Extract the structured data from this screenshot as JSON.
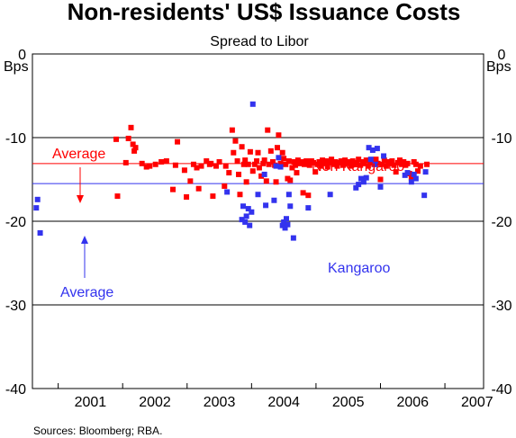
{
  "chart_data": {
    "type": "scatter",
    "title": "Non-residents' US$ Issuance Costs",
    "subtitle": "Spread to Libor",
    "ylabel_left": "Bps",
    "ylabel_right": "Bps",
    "ylim": [
      -40,
      0
    ],
    "yticks": [
      0,
      -10,
      -20,
      -30,
      -40
    ],
    "xlim": [
      2000.6,
      2007.6
    ],
    "xticks": [
      "2001",
      "2002",
      "2003",
      "2004",
      "2005",
      "2006",
      "2007"
    ],
    "grid": true,
    "source": "Sources: Bloomberg; RBA.",
    "series": [
      {
        "name": "Non Kangaroo",
        "color": "#ff0000",
        "average": -13.1,
        "points": [
          [
            2001.9,
            -10.2
          ],
          [
            2001.92,
            -17.0
          ],
          [
            2002.05,
            -13.0
          ],
          [
            2002.09,
            -10.1
          ],
          [
            2002.13,
            -8.8
          ],
          [
            2002.16,
            -10.8
          ],
          [
            2002.18,
            -11.6
          ],
          [
            2002.2,
            -11.2
          ],
          [
            2002.3,
            -13.1
          ],
          [
            2002.37,
            -13.5
          ],
          [
            2002.42,
            -13.4
          ],
          [
            2002.51,
            -13.2
          ],
          [
            2002.6,
            -12.9
          ],
          [
            2002.68,
            -12.8
          ],
          [
            2002.78,
            -16.2
          ],
          [
            2002.82,
            -13.3
          ],
          [
            2002.85,
            -10.5
          ],
          [
            2002.96,
            -13.9
          ],
          [
            2002.99,
            -17.1
          ],
          [
            2003.05,
            -15.2
          ],
          [
            2003.1,
            -13.2
          ],
          [
            2003.15,
            -13.6
          ],
          [
            2003.18,
            -16.1
          ],
          [
            2003.22,
            -13.4
          ],
          [
            2003.3,
            -12.8
          ],
          [
            2003.35,
            -13.2
          ],
          [
            2003.37,
            -13.1
          ],
          [
            2003.4,
            -17.0
          ],
          [
            2003.45,
            -13.4
          ],
          [
            2003.5,
            -12.9
          ],
          [
            2003.58,
            -15.8
          ],
          [
            2003.6,
            -13.4
          ],
          [
            2003.65,
            -14.2
          ],
          [
            2003.7,
            -9.1
          ],
          [
            2003.72,
            -11.8
          ],
          [
            2003.75,
            -10.4
          ],
          [
            2003.78,
            -12.8
          ],
          [
            2003.8,
            -14.4
          ],
          [
            2003.82,
            -16.8
          ],
          [
            2003.85,
            -11.1
          ],
          [
            2003.88,
            -13.2
          ],
          [
            2003.9,
            -12.7
          ],
          [
            2003.92,
            -15.3
          ],
          [
            2003.95,
            -13.2
          ],
          [
            2003.98,
            -11.7
          ],
          [
            2004.02,
            -14.0
          ],
          [
            2004.05,
            -13.2
          ],
          [
            2004.08,
            -12.8
          ],
          [
            2004.1,
            -11.8
          ],
          [
            2004.12,
            -13.6
          ],
          [
            2004.15,
            -14.6
          ],
          [
            2004.18,
            -13.1
          ],
          [
            2004.2,
            -12.7
          ],
          [
            2004.23,
            -15.2
          ],
          [
            2004.25,
            -9.1
          ],
          [
            2004.27,
            -13.2
          ],
          [
            2004.3,
            -11.6
          ],
          [
            2004.33,
            -12.9
          ],
          [
            2004.36,
            -13.3
          ],
          [
            2004.38,
            -15.3
          ],
          [
            2004.4,
            -11.2
          ],
          [
            2004.42,
            -9.7
          ],
          [
            2004.45,
            -13.1
          ],
          [
            2004.48,
            -11.8
          ],
          [
            2004.5,
            -12.5
          ],
          [
            2004.53,
            -13.2
          ],
          [
            2004.56,
            -14.9
          ],
          [
            2004.58,
            -12.8
          ],
          [
            2004.6,
            -15.1
          ],
          [
            2004.63,
            -13.6
          ],
          [
            2004.66,
            -12.9
          ],
          [
            2004.68,
            -13.3
          ],
          [
            2004.7,
            -14.2
          ],
          [
            2004.72,
            -12.7
          ],
          [
            2004.75,
            -13.1
          ],
          [
            2004.78,
            -12.9
          ],
          [
            2004.8,
            -16.6
          ],
          [
            2004.82,
            -13.2
          ],
          [
            2004.85,
            -12.8
          ],
          [
            2004.88,
            -16.9
          ],
          [
            2004.9,
            -13.3
          ],
          [
            2004.93,
            -12.8
          ],
          [
            2004.96,
            -13.0
          ],
          [
            2004.99,
            -14.1
          ],
          [
            2005.02,
            -13.2
          ],
          [
            2005.05,
            -12.9
          ],
          [
            2005.08,
            -13.4
          ],
          [
            2005.1,
            -12.7
          ],
          [
            2005.13,
            -13.1
          ],
          [
            2005.16,
            -12.8
          ],
          [
            2005.18,
            -13.5
          ],
          [
            2005.21,
            -13.0
          ],
          [
            2005.24,
            -12.6
          ],
          [
            2005.27,
            -13.2
          ],
          [
            2005.3,
            -12.9
          ],
          [
            2005.33,
            -13.4
          ],
          [
            2005.36,
            -13.0
          ],
          [
            2005.39,
            -12.8
          ],
          [
            2005.42,
            -13.3
          ],
          [
            2005.45,
            -12.7
          ],
          [
            2005.48,
            -13.1
          ],
          [
            2005.51,
            -12.9
          ],
          [
            2005.54,
            -13.4
          ],
          [
            2005.57,
            -12.8
          ],
          [
            2005.6,
            -13.2
          ],
          [
            2005.63,
            -13.0
          ],
          [
            2005.66,
            -12.6
          ],
          [
            2005.69,
            -13.3
          ],
          [
            2005.72,
            -12.9
          ],
          [
            2005.75,
            -13.1
          ],
          [
            2005.78,
            -12.7
          ],
          [
            2005.81,
            -13.4
          ],
          [
            2005.84,
            -13.0
          ],
          [
            2005.87,
            -12.8
          ],
          [
            2005.9,
            -13.2
          ],
          [
            2005.93,
            -12.6
          ],
          [
            2005.96,
            -13.1
          ],
          [
            2006.0,
            -15.0
          ],
          [
            2006.03,
            -13.2
          ],
          [
            2006.06,
            -12.7
          ],
          [
            2006.09,
            -13.4
          ],
          [
            2006.12,
            -12.9
          ],
          [
            2006.15,
            -13.1
          ],
          [
            2006.18,
            -12.8
          ],
          [
            2006.21,
            -13.3
          ],
          [
            2006.24,
            -14.1
          ],
          [
            2006.27,
            -13.0
          ],
          [
            2006.3,
            -12.7
          ],
          [
            2006.33,
            -13.2
          ],
          [
            2006.36,
            -12.9
          ],
          [
            2006.39,
            -13.3
          ],
          [
            2006.42,
            -13.1
          ],
          [
            2006.45,
            -14.3
          ],
          [
            2006.48,
            -14.8
          ],
          [
            2006.52,
            -12.9
          ],
          [
            2006.55,
            -13.2
          ],
          [
            2006.58,
            -14.0
          ],
          [
            2006.62,
            -13.4
          ],
          [
            2006.72,
            -13.2
          ]
        ]
      },
      {
        "name": "Kangaroo",
        "color": "#3333ee",
        "average": -15.5,
        "points": [
          [
            2000.66,
            -18.4
          ],
          [
            2000.68,
            -17.4
          ],
          [
            2000.72,
            -21.4
          ],
          [
            2003.62,
            -16.5
          ],
          [
            2003.85,
            -19.8
          ],
          [
            2003.87,
            -18.2
          ],
          [
            2003.9,
            -20.1
          ],
          [
            2003.92,
            -19.4
          ],
          [
            2003.95,
            -18.5
          ],
          [
            2003.97,
            -20.5
          ],
          [
            2004.0,
            -18.9
          ],
          [
            2004.02,
            -6.0
          ],
          [
            2004.1,
            -16.8
          ],
          [
            2004.2,
            -14.4
          ],
          [
            2004.22,
            -18.1
          ],
          [
            2004.35,
            -17.5
          ],
          [
            2004.38,
            -13.4
          ],
          [
            2004.42,
            -12.4
          ],
          [
            2004.45,
            -13.5
          ],
          [
            2004.48,
            -20.5
          ],
          [
            2004.5,
            -20.1
          ],
          [
            2004.52,
            -20.8
          ],
          [
            2004.54,
            -19.7
          ],
          [
            2004.56,
            -20.4
          ],
          [
            2004.58,
            -16.8
          ],
          [
            2004.6,
            -18.2
          ],
          [
            2004.65,
            -22.0
          ],
          [
            2004.88,
            -18.4
          ],
          [
            2005.22,
            -16.8
          ],
          [
            2005.62,
            -16.0
          ],
          [
            2005.66,
            -15.6
          ],
          [
            2005.7,
            -14.9
          ],
          [
            2005.74,
            -15.3
          ],
          [
            2005.78,
            -14.8
          ],
          [
            2005.82,
            -11.2
          ],
          [
            2005.85,
            -12.6
          ],
          [
            2005.88,
            -11.5
          ],
          [
            2005.92,
            -13.2
          ],
          [
            2005.95,
            -11.3
          ],
          [
            2006.0,
            -15.9
          ],
          [
            2006.05,
            -12.2
          ],
          [
            2006.38,
            -14.5
          ],
          [
            2006.42,
            -14.2
          ],
          [
            2006.48,
            -15.3
          ],
          [
            2006.52,
            -14.4
          ],
          [
            2006.55,
            -14.9
          ],
          [
            2006.68,
            -16.9
          ],
          [
            2006.7,
            -14.1
          ]
        ]
      }
    ],
    "annotations": {
      "non_kangaroo": "Non Kangaroo",
      "kangaroo": "Kangaroo",
      "average_red": "Average",
      "average_blue": "Average"
    }
  }
}
